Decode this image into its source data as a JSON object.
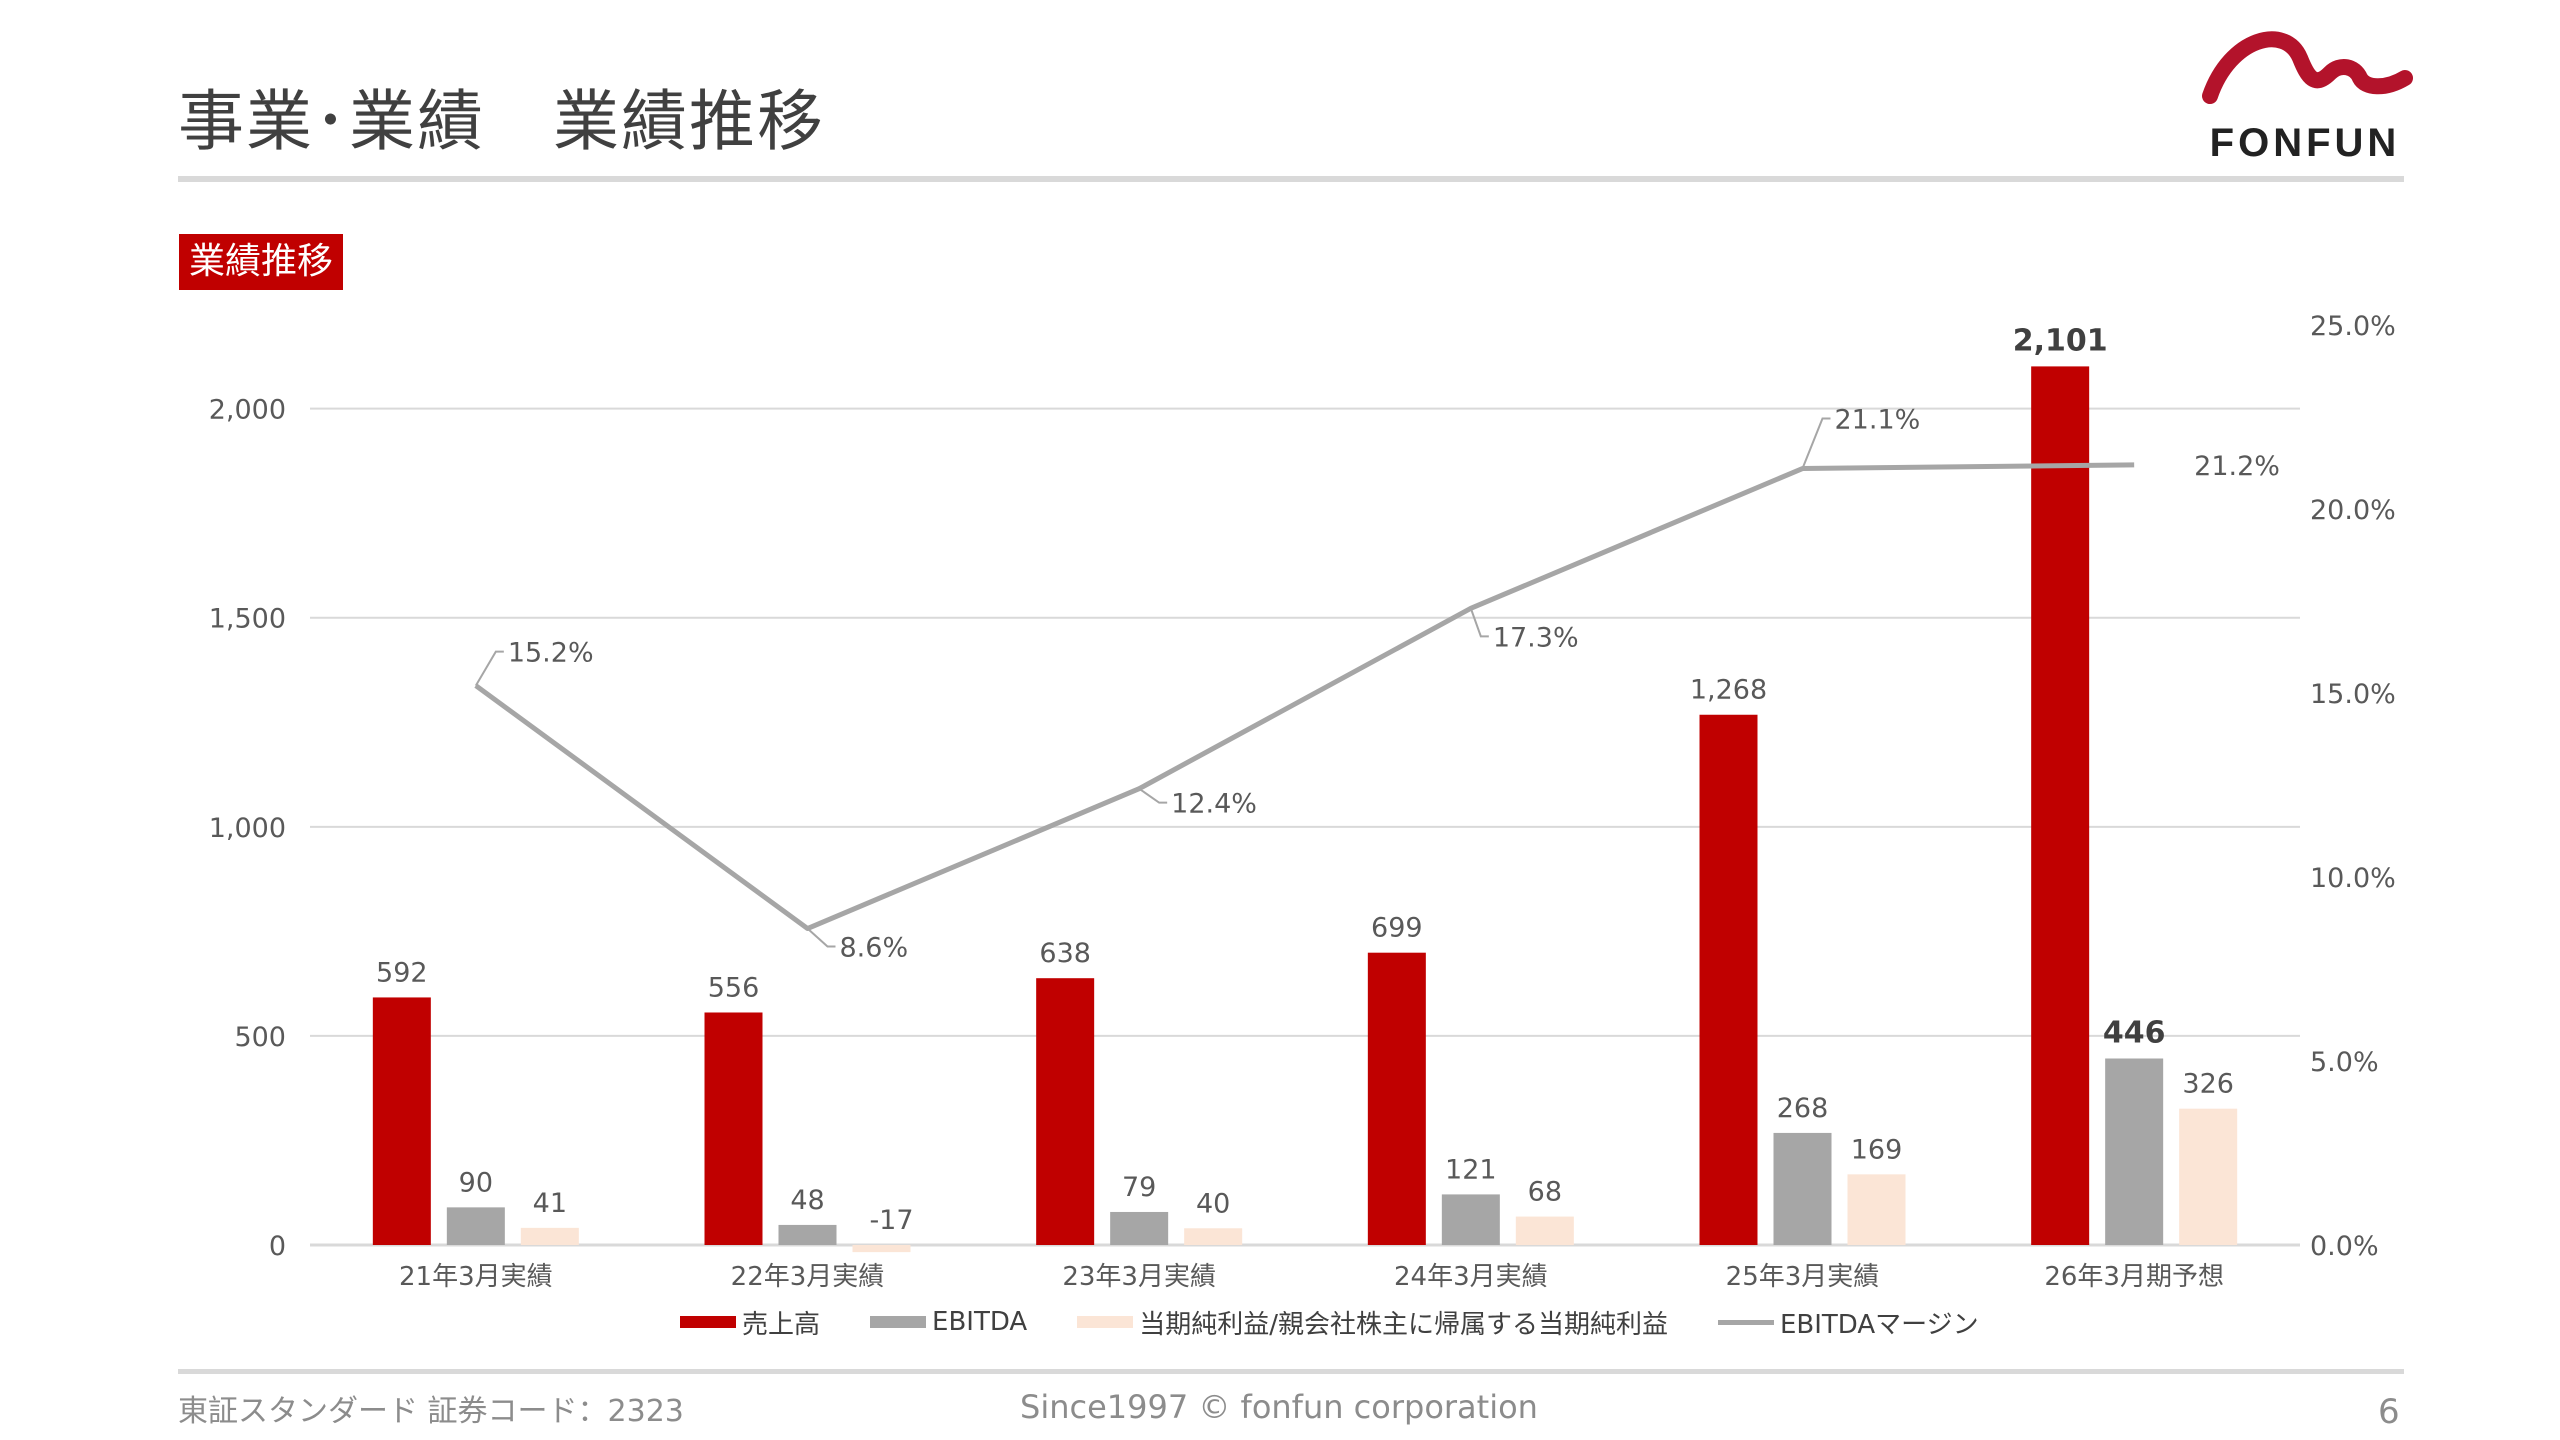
{
  "page": {
    "title": "事業･業績　業績推移",
    "section_tag": "業績推移",
    "page_number": "6",
    "footer_left": "東証スタンダード 証券コード：2323",
    "footer_center": "Since1997 © fonfun corporation",
    "logo_text": "FONFUN"
  },
  "colors": {
    "revenue": "#c00000",
    "ebitda": "#a6a6a6",
    "net_income": "#fbe5d6",
    "margin_line": "#a6a6a6",
    "grid": "#d9d9d9",
    "axis_text": "#595959"
  },
  "chart_data": {
    "type": "bar",
    "categories": [
      "21年3月実績",
      "22年3月実績",
      "23年3月実績",
      "24年3月実績",
      "25年3月実績",
      "26年3月期予想"
    ],
    "series": [
      {
        "name": "売上高",
        "key": "revenue",
        "values": [
          592,
          556,
          638,
          699,
          1268,
          2101
        ],
        "labels": [
          "592",
          "556",
          "638",
          "699",
          "1,268",
          "2,101"
        ]
      },
      {
        "name": "EBITDA",
        "key": "ebitda",
        "values": [
          90,
          48,
          79,
          121,
          268,
          446
        ],
        "labels": [
          "90",
          "48",
          "79",
          "121",
          "268",
          "446"
        ]
      },
      {
        "name": "当期純利益/親会社株主に帰属する当期純利益",
        "key": "net_income",
        "values": [
          41,
          -17,
          40,
          68,
          169,
          326
        ],
        "labels": [
          "41",
          "-17",
          "40",
          "68",
          "169",
          "326"
        ]
      }
    ],
    "line_series": {
      "name": "EBITDAマージン",
      "axis": "right",
      "values": [
        15.2,
        8.6,
        12.4,
        17.3,
        21.1,
        21.2
      ],
      "labels": [
        "15.2%",
        "8.6%",
        "12.4%",
        "17.3%",
        "21.1%",
        "21.2%"
      ]
    },
    "y_left": {
      "min": 0,
      "max": 2200,
      "ticks": [
        0,
        500,
        1000,
        1500,
        2000
      ],
      "tick_labels": [
        "0",
        "500",
        "1,000",
        "1,500",
        "2,000"
      ]
    },
    "y_right": {
      "min": 0,
      "max": 25,
      "ticks": [
        0,
        5,
        10,
        15,
        20,
        25
      ],
      "tick_labels": [
        "0.0%",
        "5.0%",
        "10.0%",
        "15.0%",
        "20.0%",
        "25.0%"
      ]
    },
    "legend": [
      "売上高",
      "EBITDA",
      "当期純利益/親会社株主に帰属する当期純利益",
      "EBITDAマージン"
    ],
    "legend_position": "bottom",
    "grid": true
  }
}
